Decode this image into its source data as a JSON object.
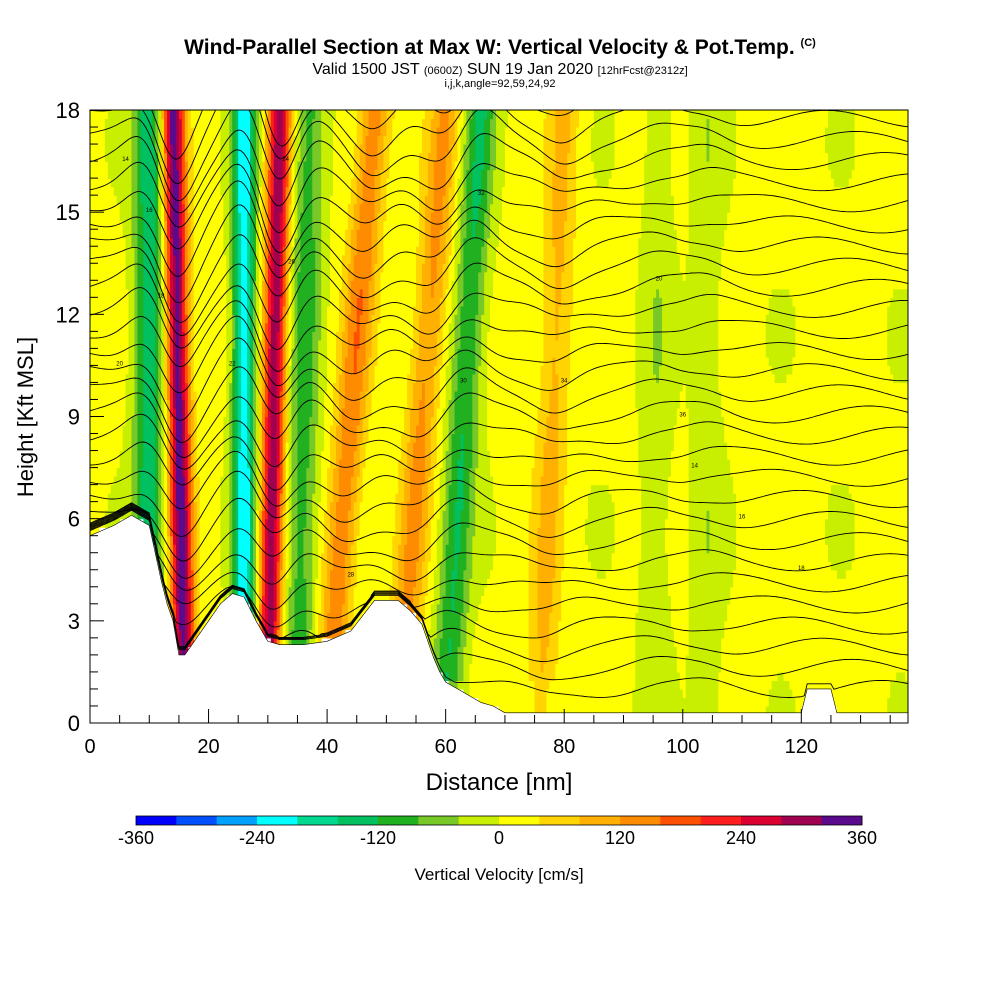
{
  "header": {
    "title": "Wind-Parallel Section at Max W: Vertical Velocity & Pot.Temp.",
    "copyright": "(C)",
    "valid_prefix": "Valid 1500 JST",
    "valid_utc": "(0600Z)",
    "valid_date": "SUN 19 Jan 2020",
    "forecast": "[12hrFcst@2312z]",
    "indices": "i,j,k,angle=92,59,24,92"
  },
  "chart_data": {
    "type": "heatmap",
    "xlabel": "Distance [nm]",
    "ylabel": "Height [Kft MSL]",
    "xlim": [
      0,
      138
    ],
    "ylim": [
      0,
      18
    ],
    "xticks": [
      0,
      20,
      40,
      60,
      80,
      100,
      120
    ],
    "yticks": [
      0,
      3,
      6,
      9,
      12,
      15,
      18
    ],
    "colorbar": {
      "label": "Vertical Velocity [cm/s]",
      "min": -360,
      "max": 360,
      "step": 40,
      "tick_labels": [
        -360,
        -240,
        -120,
        0,
        120,
        240,
        360
      ],
      "colors": [
        "#0000ff",
        "#0050ff",
        "#00a0ff",
        "#00ffff",
        "#00d890",
        "#00c060",
        "#20b020",
        "#78c828",
        "#c8ee00",
        "#ffff00",
        "#ffd400",
        "#ffb000",
        "#ff8c00",
        "#ff5000",
        "#ff1e1e",
        "#dc0032",
        "#a00050",
        "#5a0a8c"
      ]
    },
    "updraft_bands": [
      {
        "x_bottom": 16,
        "x_top": 14,
        "peak": 330
      },
      {
        "x_bottom": 30,
        "x_top": 32,
        "peak": 300
      },
      {
        "x_bottom": 40,
        "x_top": 48,
        "peak": 140
      },
      {
        "x_bottom": 52,
        "x_top": 60,
        "peak": 120
      },
      {
        "x_bottom": 76,
        "x_top": 80,
        "peak": 80
      }
    ],
    "downdraft_bands": [
      {
        "x_bottom": 10,
        "x_top": 10,
        "peak": -160
      },
      {
        "x_bottom": 26,
        "x_top": 26,
        "peak": -240
      },
      {
        "x_bottom": 35,
        "x_top": 37,
        "peak": -110
      },
      {
        "x_bottom": 60,
        "x_top": 66,
        "peak": -130
      },
      {
        "x_bottom": 95,
        "x_top": 96,
        "peak": -40
      },
      {
        "x_bottom": 104,
        "x_top": 104,
        "peak": -40
      }
    ],
    "terrain": {
      "x": [
        0,
        4,
        7,
        10,
        12,
        13,
        14,
        15,
        16,
        18,
        20,
        22,
        24,
        26,
        28,
        30,
        32,
        36,
        40,
        44,
        48,
        52,
        54,
        56,
        58,
        59,
        60,
        62,
        64,
        66,
        68,
        70,
        72,
        80,
        90,
        100,
        110,
        120,
        121,
        125,
        126,
        130,
        138
      ],
      "y": [
        5.5,
        5.8,
        6.1,
        5.8,
        4.2,
        3.5,
        3.0,
        2.0,
        2.0,
        2.5,
        3.0,
        3.5,
        3.8,
        3.7,
        3.0,
        2.4,
        2.3,
        2.3,
        2.4,
        2.7,
        3.6,
        3.6,
        3.3,
        2.9,
        1.9,
        1.5,
        1.2,
        1.0,
        0.8,
        0.6,
        0.5,
        0.3,
        0.3,
        0.3,
        0.3,
        0.3,
        0.3,
        0.3,
        1.0,
        1.0,
        0.3,
        0.3,
        0.3
      ]
    },
    "isentrope_labels": [
      "14",
      "16",
      "18",
      "20",
      "22",
      "24",
      "26",
      "28",
      "30",
      "32",
      "34",
      "36"
    ]
  }
}
